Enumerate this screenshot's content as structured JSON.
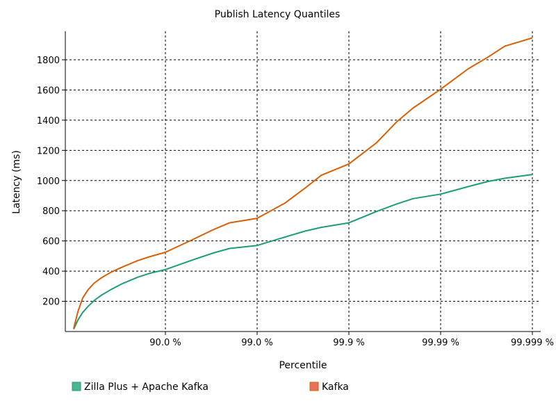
{
  "chart_data": {
    "type": "line",
    "title": "Publish Latency Quantiles",
    "xlabel": "Percentile",
    "ylabel": "Latency (ms)",
    "x_scale": "log-percentile",
    "xlim": [
      0,
      99.999
    ],
    "ylim": [
      0,
      1960
    ],
    "x_ticks": [
      {
        "value": 90.0,
        "label": "90.0 %"
      },
      {
        "value": 99.0,
        "label": "99.0 %"
      },
      {
        "value": 99.9,
        "label": "99.9 %"
      },
      {
        "value": 99.99,
        "label": "99.99 %"
      },
      {
        "value": 99.999,
        "label": "99.999 %"
      }
    ],
    "y_ticks": [
      200,
      400,
      600,
      800,
      1000,
      1200,
      1400,
      1600,
      1800
    ],
    "grid": true,
    "legend": "bottom",
    "series": [
      {
        "name": "Zilla Plus + Apache Kafka",
        "color": "#1b9e77",
        "legend_color": "#4fb494",
        "points": [
          [
            0,
            15
          ],
          [
            10,
            75
          ],
          [
            20,
            125
          ],
          [
            30,
            165
          ],
          [
            40,
            205
          ],
          [
            50,
            240
          ],
          [
            60,
            275
          ],
          [
            70,
            315
          ],
          [
            80,
            360
          ],
          [
            85,
            385
          ],
          [
            90,
            410
          ],
          [
            95,
            475
          ],
          [
            97,
            520
          ],
          [
            98,
            550
          ],
          [
            99,
            570
          ],
          [
            99.5,
            625
          ],
          [
            99.7,
            665
          ],
          [
            99.8,
            690
          ],
          [
            99.9,
            720
          ],
          [
            99.95,
            795
          ],
          [
            99.97,
            845
          ],
          [
            99.98,
            880
          ],
          [
            99.99,
            910
          ],
          [
            99.995,
            960
          ],
          [
            99.997,
            995
          ],
          [
            99.998,
            1015
          ],
          [
            99.999,
            1040
          ]
        ]
      },
      {
        "name": "Kafka",
        "color": "#d95f02",
        "legend_color": "#e8715a",
        "points": [
          [
            0,
            20
          ],
          [
            10,
            130
          ],
          [
            20,
            220
          ],
          [
            30,
            275
          ],
          [
            40,
            320
          ],
          [
            50,
            355
          ],
          [
            60,
            390
          ],
          [
            70,
            425
          ],
          [
            80,
            470
          ],
          [
            85,
            495
          ],
          [
            90,
            525
          ],
          [
            95,
            610
          ],
          [
            97,
            675
          ],
          [
            98,
            720
          ],
          [
            99,
            750
          ],
          [
            99.5,
            850
          ],
          [
            99.7,
            950
          ],
          [
            99.8,
            1035
          ],
          [
            99.9,
            1110
          ],
          [
            99.95,
            1250
          ],
          [
            99.97,
            1390
          ],
          [
            99.98,
            1480
          ],
          [
            99.99,
            1605
          ],
          [
            99.995,
            1740
          ],
          [
            99.997,
            1820
          ],
          [
            99.998,
            1890
          ],
          [
            99.999,
            1945
          ]
        ]
      }
    ]
  }
}
